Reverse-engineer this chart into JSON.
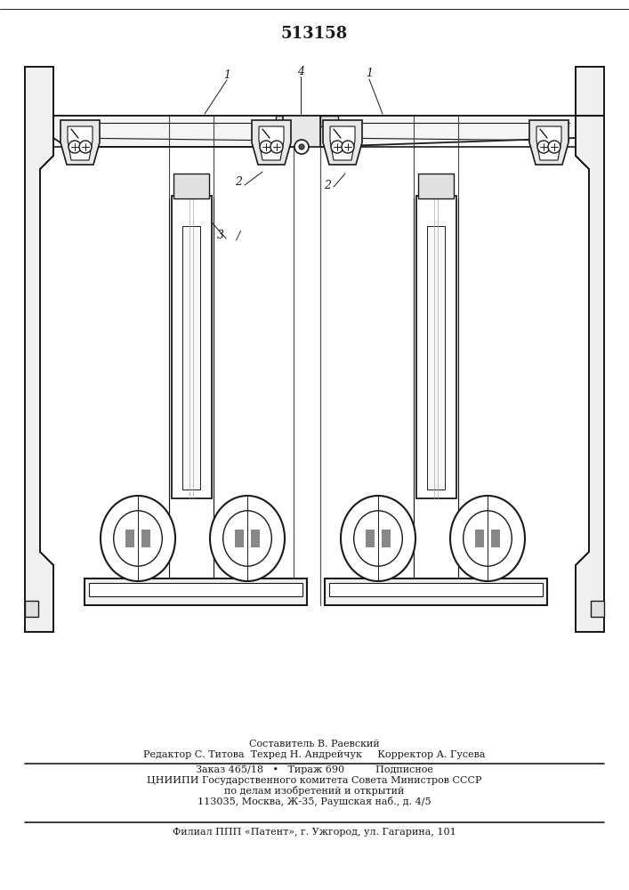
{
  "title": "513158",
  "bg_color": "#ffffff",
  "line_color": "#1a1a1a",
  "footer": {
    "line1": "Составитель В. Раевский",
    "line2": "Редактор С. Титова  Техред Н. Андрейчук     Корректор А. Гусева",
    "line3": "Заказ 465/18   •   Тираж 690          Подписное",
    "line4": "ЦНИИПИ Государственного комитета Совета Министров СССР",
    "line5": "по делам изобретений и открытий",
    "line6": "113035, Москва, Ж-35, Раушская наб., д. 4/5",
    "line7": "Филиал ППП «Патент», г. Ужгород, ул. Гагарина, 101"
  }
}
